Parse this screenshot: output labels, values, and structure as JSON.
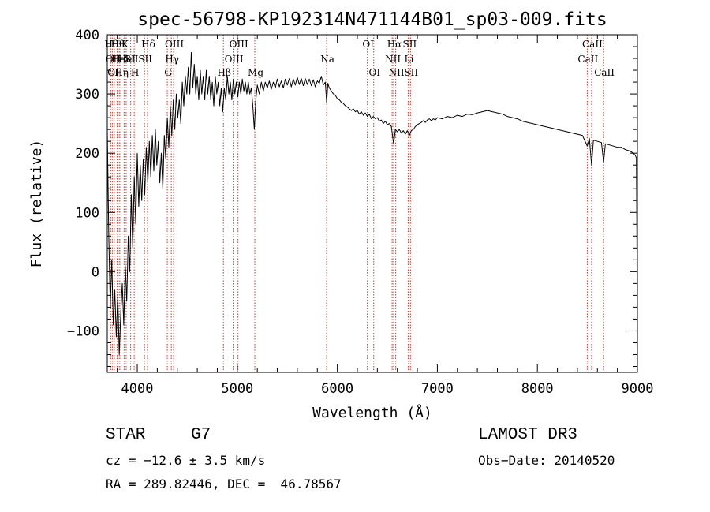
{
  "chart_data": {
    "type": "line",
    "title": "spec-56798-KP192314N471144B01_sp03-009.fits",
    "xlabel": "Wavelength (Å)",
    "ylabel": "Flux (relative)",
    "xlim": [
      3700,
      9000
    ],
    "ylim": [
      -170,
      400
    ],
    "xticks": [
      4000,
      5000,
      6000,
      7000,
      8000,
      9000
    ],
    "yticks": [
      -100,
      0,
      100,
      200,
      300,
      400
    ],
    "xtick_labels": [
      "4000",
      "5000",
      "6000",
      "7000",
      "8000",
      "9000"
    ],
    "ytick_labels": [
      "−100",
      "0",
      "100",
      "200",
      "300",
      "400"
    ],
    "grid": false,
    "series": [
      {
        "name": "flux",
        "color": "#000000",
        "points": [
          [
            3700,
            240
          ],
          [
            3715,
            60
          ],
          [
            3730,
            -60
          ],
          [
            3745,
            20
          ],
          [
            3760,
            -90
          ],
          [
            3775,
            -30
          ],
          [
            3790,
            -110
          ],
          [
            3805,
            -40
          ],
          [
            3820,
            -140
          ],
          [
            3835,
            -70
          ],
          [
            3850,
            -20
          ],
          [
            3865,
            -90
          ],
          [
            3880,
            10
          ],
          [
            3895,
            -50
          ],
          [
            3910,
            60
          ],
          [
            3925,
            0
          ],
          [
            3940,
            130
          ],
          [
            3955,
            40
          ],
          [
            3970,
            160
          ],
          [
            3985,
            80
          ],
          [
            4000,
            200
          ],
          [
            4015,
            110
          ],
          [
            4030,
            180
          ],
          [
            4045,
            120
          ],
          [
            4060,
            190
          ],
          [
            4075,
            130
          ],
          [
            4090,
            210
          ],
          [
            4105,
            150
          ],
          [
            4120,
            220
          ],
          [
            4135,
            160
          ],
          [
            4150,
            230
          ],
          [
            4165,
            170
          ],
          [
            4180,
            240
          ],
          [
            4195,
            180
          ],
          [
            4210,
            220
          ],
          [
            4225,
            150
          ],
          [
            4240,
            200
          ],
          [
            4255,
            140
          ],
          [
            4270,
            230
          ],
          [
            4285,
            190
          ],
          [
            4300,
            260
          ],
          [
            4315,
            210
          ],
          [
            4330,
            280
          ],
          [
            4345,
            230
          ],
          [
            4360,
            290
          ],
          [
            4375,
            240
          ],
          [
            4390,
            300
          ],
          [
            4405,
            260
          ],
          [
            4420,
            290
          ],
          [
            4435,
            250
          ],
          [
            4450,
            320
          ],
          [
            4465,
            280
          ],
          [
            4480,
            330
          ],
          [
            4495,
            300
          ],
          [
            4510,
            345
          ],
          [
            4525,
            300
          ],
          [
            4540,
            370
          ],
          [
            4555,
            310
          ],
          [
            4570,
            350
          ],
          [
            4585,
            300
          ],
          [
            4600,
            330
          ],
          [
            4615,
            290
          ],
          [
            4630,
            340
          ],
          [
            4645,
            300
          ],
          [
            4660,
            330
          ],
          [
            4675,
            290
          ],
          [
            4690,
            340
          ],
          [
            4705,
            300
          ],
          [
            4720,
            330
          ],
          [
            4735,
            290
          ],
          [
            4750,
            320
          ],
          [
            4765,
            280
          ],
          [
            4780,
            330
          ],
          [
            4795,
            300
          ],
          [
            4810,
            320
          ],
          [
            4825,
            280
          ],
          [
            4840,
            310
          ],
          [
            4855,
            270
          ],
          [
            4870,
            310
          ],
          [
            4885,
            290
          ],
          [
            4900,
            330
          ],
          [
            4915,
            300
          ],
          [
            4930,
            320
          ],
          [
            4945,
            290
          ],
          [
            4960,
            325
          ],
          [
            4975,
            300
          ],
          [
            4990,
            320
          ],
          [
            5005,
            295
          ],
          [
            5020,
            320
          ],
          [
            5035,
            300
          ],
          [
            5050,
            325
          ],
          [
            5065,
            305
          ],
          [
            5080,
            320
          ],
          [
            5095,
            300
          ],
          [
            5110,
            320
          ],
          [
            5125,
            300
          ],
          [
            5140,
            310
          ],
          [
            5155,
            280
          ],
          [
            5170,
            240
          ],
          [
            5185,
            290
          ],
          [
            5200,
            315
          ],
          [
            5220,
            300
          ],
          [
            5240,
            320
          ],
          [
            5260,
            305
          ],
          [
            5280,
            320
          ],
          [
            5300,
            310
          ],
          [
            5320,
            322
          ],
          [
            5340,
            308
          ],
          [
            5360,
            320
          ],
          [
            5380,
            310
          ],
          [
            5400,
            325
          ],
          [
            5420,
            312
          ],
          [
            5440,
            322
          ],
          [
            5460,
            310
          ],
          [
            5480,
            325
          ],
          [
            5500,
            315
          ],
          [
            5520,
            326
          ],
          [
            5540,
            312
          ],
          [
            5560,
            325
          ],
          [
            5580,
            315
          ],
          [
            5600,
            328
          ],
          [
            5620,
            316
          ],
          [
            5640,
            326
          ],
          [
            5660,
            314
          ],
          [
            5680,
            326
          ],
          [
            5700,
            316
          ],
          [
            5720,
            325
          ],
          [
            5740,
            314
          ],
          [
            5760,
            324
          ],
          [
            5780,
            312
          ],
          [
            5800,
            322
          ],
          [
            5820,
            318
          ],
          [
            5840,
            330
          ],
          [
            5860,
            315
          ],
          [
            5880,
            320
          ],
          [
            5893,
            285
          ],
          [
            5905,
            318
          ],
          [
            5920,
            310
          ],
          [
            5940,
            305
          ],
          [
            5960,
            300
          ],
          [
            5980,
            298
          ],
          [
            6000,
            292
          ],
          [
            6020,
            290
          ],
          [
            6040,
            286
          ],
          [
            6060,
            284
          ],
          [
            6080,
            280
          ],
          [
            6100,
            278
          ],
          [
            6120,
            275
          ],
          [
            6140,
            272
          ],
          [
            6160,
            275
          ],
          [
            6180,
            270
          ],
          [
            6200,
            272
          ],
          [
            6220,
            266
          ],
          [
            6240,
            270
          ],
          [
            6260,
            264
          ],
          [
            6280,
            268
          ],
          [
            6300,
            262
          ],
          [
            6320,
            266
          ],
          [
            6340,
            258
          ],
          [
            6360,
            262
          ],
          [
            6380,
            258
          ],
          [
            6400,
            260
          ],
          [
            6420,
            254
          ],
          [
            6440,
            256
          ],
          [
            6460,
            250
          ],
          [
            6480,
            254
          ],
          [
            6500,
            248
          ],
          [
            6520,
            250
          ],
          [
            6540,
            245
          ],
          [
            6563,
            215
          ],
          [
            6580,
            240
          ],
          [
            6600,
            236
          ],
          [
            6620,
            240
          ],
          [
            6640,
            234
          ],
          [
            6660,
            238
          ],
          [
            6680,
            232
          ],
          [
            6700,
            238
          ],
          [
            6720,
            230
          ],
          [
            6740,
            238
          ],
          [
            6760,
            240
          ],
          [
            6780,
            245
          ],
          [
            6800,
            248
          ],
          [
            6820,
            250
          ],
          [
            6840,
            252
          ],
          [
            6860,
            255
          ],
          [
            6880,
            252
          ],
          [
            6900,
            256
          ],
          [
            6920,
            258
          ],
          [
            6940,
            255
          ],
          [
            6960,
            258
          ],
          [
            6980,
            256
          ],
          [
            7000,
            260
          ],
          [
            7050,
            258
          ],
          [
            7100,
            262
          ],
          [
            7150,
            260
          ],
          [
            7200,
            264
          ],
          [
            7250,
            262
          ],
          [
            7300,
            266
          ],
          [
            7350,
            265
          ],
          [
            7400,
            268
          ],
          [
            7450,
            270
          ],
          [
            7500,
            272
          ],
          [
            7550,
            270
          ],
          [
            7600,
            268
          ],
          [
            7650,
            266
          ],
          [
            7700,
            262
          ],
          [
            7750,
            260
          ],
          [
            7800,
            258
          ],
          [
            7850,
            254
          ],
          [
            7900,
            252
          ],
          [
            7950,
            250
          ],
          [
            8000,
            248
          ],
          [
            8050,
            246
          ],
          [
            8100,
            244
          ],
          [
            8150,
            242
          ],
          [
            8200,
            240
          ],
          [
            8250,
            238
          ],
          [
            8300,
            236
          ],
          [
            8350,
            234
          ],
          [
            8400,
            232
          ],
          [
            8450,
            230
          ],
          [
            8498,
            212
          ],
          [
            8520,
            225
          ],
          [
            8542,
            180
          ],
          [
            8560,
            222
          ],
          [
            8600,
            220
          ],
          [
            8640,
            218
          ],
          [
            8662,
            185
          ],
          [
            8680,
            216
          ],
          [
            8720,
            214
          ],
          [
            8760,
            212
          ],
          [
            8800,
            210
          ],
          [
            8840,
            210
          ],
          [
            8880,
            206
          ],
          [
            8920,
            204
          ],
          [
            8960,
            200
          ],
          [
            8980,
            196
          ],
          [
            8990,
            192
          ],
          [
            8995,
            40
          ],
          [
            9000,
            20
          ]
        ]
      }
    ],
    "lines": [
      {
        "x": 3734,
        "label": "Hθ",
        "row": 0
      },
      {
        "x": 3750,
        "label": "OII",
        "row": 1
      },
      {
        "x": 3770,
        "label": "OII",
        "row": 2
      },
      {
        "x": 3798,
        "label": "Hθ",
        "row": 0
      },
      {
        "x": 3820,
        "label": "HeI",
        "row": 1
      },
      {
        "x": 3835,
        "label": "Hη",
        "row": 2
      },
      {
        "x": 3868,
        "label": "K",
        "row": 0
      },
      {
        "x": 3889,
        "label": "HeI",
        "row": 1
      },
      {
        "x": 3934,
        "label": "SII",
        "row": 1
      },
      {
        "x": 3969,
        "label": "H",
        "row": 2
      },
      {
        "x": 4102,
        "label": "Hδ",
        "row": 0
      },
      {
        "x": 4072,
        "label": "SII",
        "row": 1
      },
      {
        "x": 4300,
        "label": "G",
        "row": 2
      },
      {
        "x": 4340,
        "label": "Hγ",
        "row": 1
      },
      {
        "x": 4363,
        "label": "OIII",
        "row": 0
      },
      {
        "x": 4861,
        "label": "Hβ",
        "row": 2
      },
      {
        "x": 4959,
        "label": "OIII",
        "row": 1
      },
      {
        "x": 5007,
        "label": "OIII",
        "row": 0
      },
      {
        "x": 5175,
        "label": "Mg",
        "row": 2
      },
      {
        "x": 5893,
        "label": "Na",
        "row": 1
      },
      {
        "x": 6300,
        "label": "OI",
        "row": 0
      },
      {
        "x": 6364,
        "label": "OI",
        "row": 2
      },
      {
        "x": 6548,
        "label": "NII",
        "row": 1
      },
      {
        "x": 6563,
        "label": "Hα",
        "row": 0
      },
      {
        "x": 6584,
        "label": "NII",
        "row": 2
      },
      {
        "x": 6716,
        "label": "SII",
        "row": 0
      },
      {
        "x": 6708,
        "label": "Li",
        "row": 1
      },
      {
        "x": 6731,
        "label": "SII",
        "row": 2
      },
      {
        "x": 8498,
        "label": "CaII",
        "row": 1
      },
      {
        "x": 8542,
        "label": "CaII",
        "row": 0
      },
      {
        "x": 8662,
        "label": "CaII",
        "row": 2
      }
    ],
    "line_color": "#c0392b"
  },
  "info": {
    "class_label": "STAR",
    "subclass_label": "G7",
    "redshift_text": "cz = −12.6 ± 3.5 km/s",
    "coords_text": "RA = 289.82446, DEC =  46.78567",
    "survey_label": "LAMOST DR3",
    "obs_date_text": "Obs−Date: 20140520"
  }
}
